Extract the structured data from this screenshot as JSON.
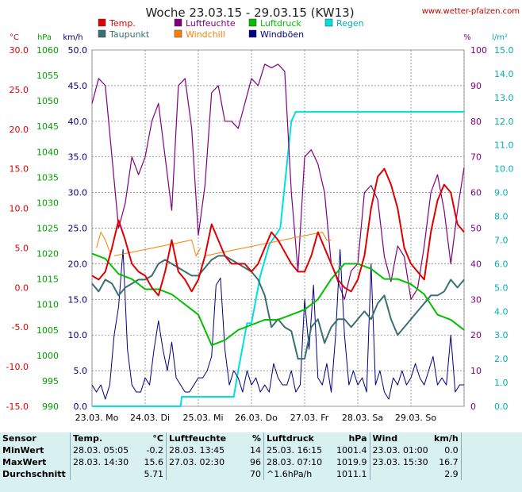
{
  "header": {
    "title": "Woche 23.03.15 - 29.03.15 (KW13)",
    "site": "www.wetter-pfalzen.com"
  },
  "legend": [
    {
      "label": "Temp.",
      "color": "#e00000"
    },
    {
      "label": "Luftfeuchte",
      "color": "#800080"
    },
    {
      "label": "Luftdruck",
      "color": "#00c000"
    },
    {
      "label": "Regen",
      "color": "#00e0e0"
    },
    {
      "label": "Taupunkt",
      "color": "#3a7070"
    },
    {
      "label": "Windchill",
      "color": "#ff8000"
    },
    {
      "label": "Windböen",
      "color": "#000080"
    }
  ],
  "chart_data": {
    "type": "line",
    "title": "Woche 23.03.15 - 29.03.15 (KW13)",
    "x_labels": [
      "23.03. Mo",
      "24.03. Di",
      "25.03. Mi",
      "26.03. Do",
      "27.03. Fr",
      "28.03. Sa",
      "29.03. So"
    ],
    "x_range_hours": [
      0,
      168
    ],
    "grid": true,
    "axes": {
      "temp": {
        "unit": "°C",
        "ylim": [
          -15,
          30
        ],
        "ticks": [
          "30.0",
          "25.0",
          "20.0",
          "15.0",
          "10.0",
          "5.0",
          "0.0",
          "-5.0",
          "-10.0",
          "-15.0"
        ],
        "color": "#e00000"
      },
      "pressure": {
        "unit": "hPa",
        "ylim": [
          990,
          1060
        ],
        "ticks": [
          "1060",
          "1055",
          "1050",
          "1045",
          "1040",
          "1035",
          "1030",
          "1025",
          "1020",
          "1015",
          "1010",
          "1005",
          "1000",
          "995",
          "990"
        ],
        "color": "#00a000"
      },
      "wind": {
        "unit": "km/h",
        "ylim": [
          0,
          50
        ],
        "ticks": [
          "50.0",
          "45.0",
          "40.0",
          "35.0",
          "30.0",
          "25.0",
          "20.0",
          "15.0",
          "10.0",
          "5.0",
          "0.0"
        ],
        "color": "#000080"
      },
      "humidity": {
        "unit": "%",
        "ylim": [
          0,
          100
        ],
        "ticks": [
          "100",
          "90",
          "80",
          "70",
          "60",
          "50",
          "40",
          "30",
          "20",
          "10",
          "0"
        ],
        "color": "#800080"
      },
      "rain": {
        "unit": "l/m²",
        "ylim": [
          0,
          15
        ],
        "ticks": [
          "15.0",
          "14.0",
          "13.0",
          "12.0",
          "11.0",
          "10.0",
          "9.0",
          "8.0",
          "7.0",
          "6.0",
          "5.0",
          "4.0",
          "3.0",
          "2.0",
          "1.0",
          "0.0"
        ],
        "color": "#00b0b0"
      }
    },
    "series": [
      {
        "name": "Temp.",
        "axis": "temp",
        "color": "#e00000",
        "x": [
          0,
          3,
          6,
          9,
          12,
          15,
          18,
          21,
          24,
          27,
          30,
          33,
          36,
          39,
          42,
          45,
          48,
          51,
          54,
          57,
          60,
          63,
          66,
          69,
          72,
          75,
          78,
          81,
          84,
          87,
          90,
          93,
          96,
          99,
          102,
          105,
          108,
          111,
          114,
          117,
          120,
          123,
          126,
          129,
          132,
          135,
          138,
          141,
          144,
          147,
          150,
          153,
          156,
          159,
          162,
          165,
          168
        ],
        "y": [
          1.5,
          1,
          2,
          5,
          8.5,
          6,
          3,
          2,
          1.5,
          0,
          -1,
          2,
          6,
          2,
          1,
          -0.5,
          1,
          4,
          8,
          6,
          4,
          3,
          3,
          3,
          2,
          3,
          5,
          7,
          6,
          4.5,
          3,
          2,
          2,
          4,
          7,
          5,
          3,
          1,
          0,
          -0.5,
          1,
          4,
          10,
          14,
          15,
          13,
          10,
          5,
          3,
          2,
          1,
          7,
          11,
          13,
          12,
          8,
          7
        ]
      },
      {
        "name": "Taupunkt",
        "axis": "temp",
        "color": "#3a7070",
        "x": [
          0,
          3,
          6,
          9,
          12,
          15,
          18,
          21,
          24,
          27,
          30,
          33,
          36,
          39,
          42,
          45,
          48,
          51,
          54,
          57,
          60,
          63,
          66,
          69,
          72,
          75,
          78,
          81,
          84,
          87,
          90,
          93,
          96,
          99,
          102,
          105,
          108,
          111,
          114,
          117,
          120,
          123,
          126,
          129,
          132,
          135,
          138,
          141,
          144,
          147,
          150,
          153,
          156,
          159,
          162,
          165,
          168
        ],
        "y": [
          0.5,
          -0.5,
          1,
          0.5,
          -1,
          0,
          0.5,
          1,
          1,
          1.5,
          3,
          3.5,
          3,
          2.5,
          2,
          1.5,
          1.5,
          2.5,
          3.5,
          4,
          4,
          3.5,
          3,
          2.5,
          2,
          1,
          -1,
          -5,
          -4,
          -5,
          -5.5,
          -9,
          -9,
          -5,
          -4,
          -7,
          -5,
          -4,
          -4,
          -5,
          -4,
          -3,
          -4,
          -2,
          -1,
          -4,
          -6,
          -5,
          -4,
          -3,
          -2,
          -1,
          -1,
          -0.5,
          1,
          0,
          1
        ]
      },
      {
        "name": "Windchill",
        "axis": "temp",
        "color": "#ff8000",
        "x": [
          2,
          4,
          6,
          8,
          10,
          45,
          47,
          49,
          51,
          104,
          106,
          108
        ],
        "y": [
          5,
          7,
          6,
          4.5,
          4,
          6,
          4,
          5,
          4,
          7,
          6,
          6
        ]
      },
      {
        "name": "Luftfeuchte",
        "axis": "humidity",
        "color": "#800080",
        "x": [
          0,
          3,
          6,
          9,
          12,
          15,
          18,
          21,
          24,
          27,
          30,
          33,
          36,
          39,
          42,
          45,
          48,
          51,
          54,
          57,
          60,
          63,
          66,
          69,
          72,
          75,
          78,
          81,
          84,
          87,
          90,
          93,
          96,
          99,
          102,
          105,
          108,
          111,
          114,
          117,
          120,
          123,
          126,
          129,
          132,
          135,
          138,
          141,
          144,
          147,
          150,
          153,
          156,
          159,
          162,
          165,
          168
        ],
        "y": [
          85,
          92,
          90,
          70,
          50,
          57,
          70,
          65,
          70,
          80,
          85,
          70,
          55,
          90,
          92,
          78,
          48,
          62,
          88,
          90,
          80,
          80,
          78,
          85,
          92,
          90,
          96,
          95,
          96,
          94,
          60,
          38,
          70,
          72,
          68,
          60,
          40,
          35,
          30,
          38,
          40,
          60,
          62,
          58,
          42,
          35,
          45,
          42,
          30,
          33,
          45,
          60,
          65,
          55,
          40,
          55,
          67
        ]
      },
      {
        "name": "Luftdruck",
        "axis": "pressure",
        "color": "#00c000",
        "x": [
          0,
          6,
          12,
          18,
          24,
          30,
          36,
          42,
          48,
          54,
          60,
          66,
          72,
          78,
          84,
          90,
          96,
          102,
          108,
          114,
          120,
          126,
          132,
          138,
          144,
          150,
          156,
          162,
          168
        ],
        "y": [
          1020,
          1019,
          1016,
          1015,
          1013,
          1013,
          1012,
          1010,
          1008,
          1002,
          1003,
          1005,
          1006,
          1007,
          1007,
          1008,
          1009,
          1011,
          1015,
          1018,
          1018,
          1017,
          1015,
          1015,
          1014,
          1012,
          1008,
          1007,
          1005
        ]
      },
      {
        "name": "Regen",
        "axis": "rain",
        "color": "#00e0e0",
        "x": [
          0,
          40,
          40.5,
          64,
          66,
          70,
          72,
          76,
          80,
          85,
          90,
          92,
          93,
          110,
          168
        ],
        "y": [
          0,
          0,
          0.4,
          0.4,
          1.5,
          3.5,
          3.5,
          5.5,
          6.8,
          7.5,
          12.0,
          12.4,
          12.4,
          12.4,
          12.4
        ]
      },
      {
        "name": "Windböen",
        "axis": "wind",
        "color": "#000080",
        "x": [
          0,
          2,
          4,
          6,
          8,
          10,
          12,
          14,
          16,
          18,
          20,
          22,
          24,
          26,
          28,
          30,
          32,
          34,
          36,
          38,
          40,
          42,
          44,
          46,
          48,
          50,
          52,
          54,
          56,
          58,
          60,
          62,
          64,
          66,
          68,
          70,
          72,
          74,
          76,
          78,
          80,
          82,
          84,
          86,
          88,
          90,
          92,
          94,
          96,
          98,
          100,
          102,
          104,
          106,
          108,
          110,
          112,
          114,
          116,
          118,
          120,
          122,
          124,
          126,
          128,
          130,
          132,
          134,
          136,
          138,
          140,
          142,
          144,
          146,
          148,
          150,
          152,
          154,
          156,
          158,
          160,
          162,
          164,
          166,
          168
        ],
        "y": [
          3,
          2,
          3,
          1,
          3,
          10,
          14,
          22,
          8,
          3,
          2,
          2,
          4,
          3,
          8,
          12,
          8,
          5,
          9,
          4,
          3,
          2,
          2,
          3,
          4,
          4,
          5,
          7,
          17,
          18,
          8,
          3,
          5,
          4,
          2,
          5,
          3,
          4,
          2,
          3,
          2,
          6,
          4,
          3,
          3,
          5,
          2,
          3,
          15,
          8,
          17,
          4,
          3,
          6,
          2,
          10,
          22,
          10,
          3,
          5,
          3,
          4,
          2,
          20,
          3,
          5,
          2,
          1,
          4,
          3,
          5,
          3,
          4,
          6,
          4,
          3,
          5,
          7,
          3,
          4,
          3,
          10,
          2,
          3,
          3
        ]
      }
    ]
  },
  "table": {
    "headers": [
      "Sensor",
      "Temp.",
      "°C",
      "Luftfeuchte",
      "%",
      "Luftdruck",
      "hPa",
      "Wind",
      "km/h"
    ],
    "rows": [
      {
        "label": "MinWert",
        "t_time": "28.03.  05:05",
        "t_val": "-0.2",
        "h_time": "28.03.  13:45",
        "h_val": "14",
        "p_time": "25.03.  16:15",
        "p_val": "1001.4",
        "w_time": "23.03.  01:00",
        "w_val": "0.0"
      },
      {
        "label": "MaxWert",
        "t_time": "28.03.  14:30",
        "t_val": "15.6",
        "h_time": "27.03.  02:30",
        "h_val": "96",
        "p_time": "28.03.  07:10",
        "p_val": "1019.9",
        "w_time": "23.03.  15:30",
        "w_val": "16.7"
      },
      {
        "label": "Durchschnitt",
        "t_time": "",
        "t_val": "5.71",
        "h_time": "",
        "h_val": "70",
        "p_time": "^1.6hPa/h",
        "p_val": "1011.1",
        "w_time": "",
        "w_val": "2.9"
      }
    ]
  }
}
